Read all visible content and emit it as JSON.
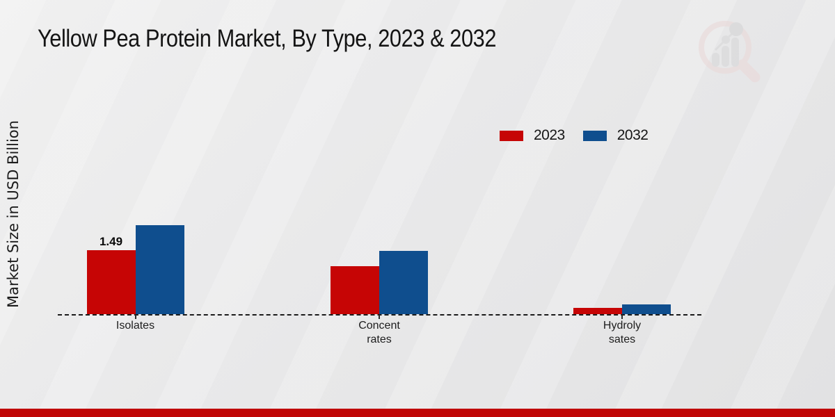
{
  "title": "Yellow Pea Protein Market, By Type, 2023 & 2032",
  "y_axis_label": "Market Size in USD Billion",
  "legend": {
    "items": [
      "2023",
      "2032"
    ]
  },
  "footer": {
    "stripe_color": "#c00505"
  },
  "colors": {
    "series_2023": "#c60505",
    "series_2032": "#0f4e8e",
    "baseline": "#1a1a1a"
  },
  "watermark": {
    "name": "market-research-magnifier-logo"
  },
  "chart_data": {
    "type": "bar",
    "title": "Yellow Pea Protein Market, By Type, 2023 & 2032",
    "xlabel": "",
    "ylabel": "Market Size in USD Billion",
    "categories": [
      "Isolates",
      "Concentrates",
      "Hydrolysates"
    ],
    "category_display_lines": [
      [
        "Isolates"
      ],
      [
        "Concent",
        "rates"
      ],
      [
        "Hydroly",
        "sates"
      ]
    ],
    "series": [
      {
        "name": "2023",
        "color": "#c60505",
        "values": [
          1.49,
          1.12,
          0.15
        ],
        "labels": [
          "1.49",
          null,
          null
        ]
      },
      {
        "name": "2032",
        "color": "#0f4e8e",
        "values": [
          2.07,
          1.47,
          0.23
        ],
        "labels": [
          null,
          null,
          null
        ]
      }
    ],
    "ylim": [
      0,
      2.3
    ],
    "y_axis_ticks_shown": false,
    "gridlines": false,
    "baseline_style": "dashed",
    "legend_position": "top-right"
  }
}
